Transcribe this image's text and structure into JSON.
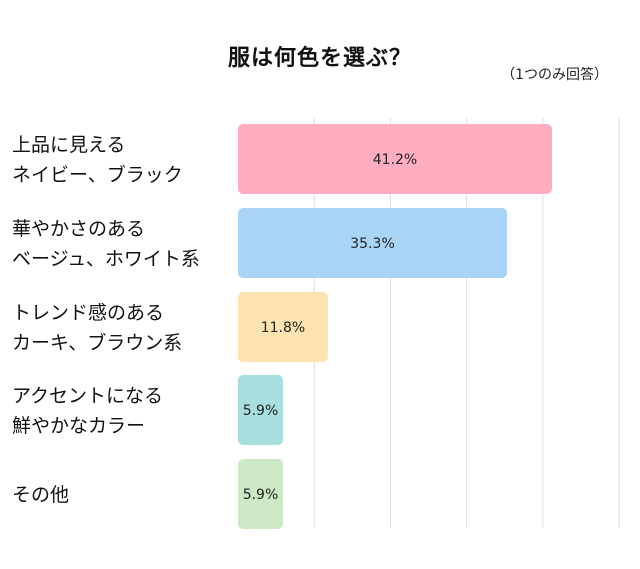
{
  "chart_data": {
    "type": "bar",
    "orientation": "horizontal",
    "title": "服は何色を選ぶ？",
    "note": "（1つのみ回答）",
    "categories": [
      [
        "上品に見える",
        "ネイビー、ブラック"
      ],
      [
        "華やかさのある",
        "ベージュ、ホワイト系"
      ],
      [
        "トレンド感のある",
        "カーキ、ブラウン系"
      ],
      [
        "アクセントになる",
        "鮮やかなカラー"
      ],
      [
        "その他"
      ]
    ],
    "values": [
      41.2,
      35.3,
      11.8,
      5.9,
      5.9
    ],
    "value_labels": [
      "41.2%",
      "35.3%",
      "11.8%",
      "5.9%",
      "5.9%"
    ],
    "colors": [
      "#ffadc1",
      "#a9d4f7",
      "#fde3b0",
      "#a7dede",
      "#cde8c4"
    ],
    "xlim": [
      0,
      50
    ],
    "grid": true,
    "grid_color": "#dddddd"
  }
}
